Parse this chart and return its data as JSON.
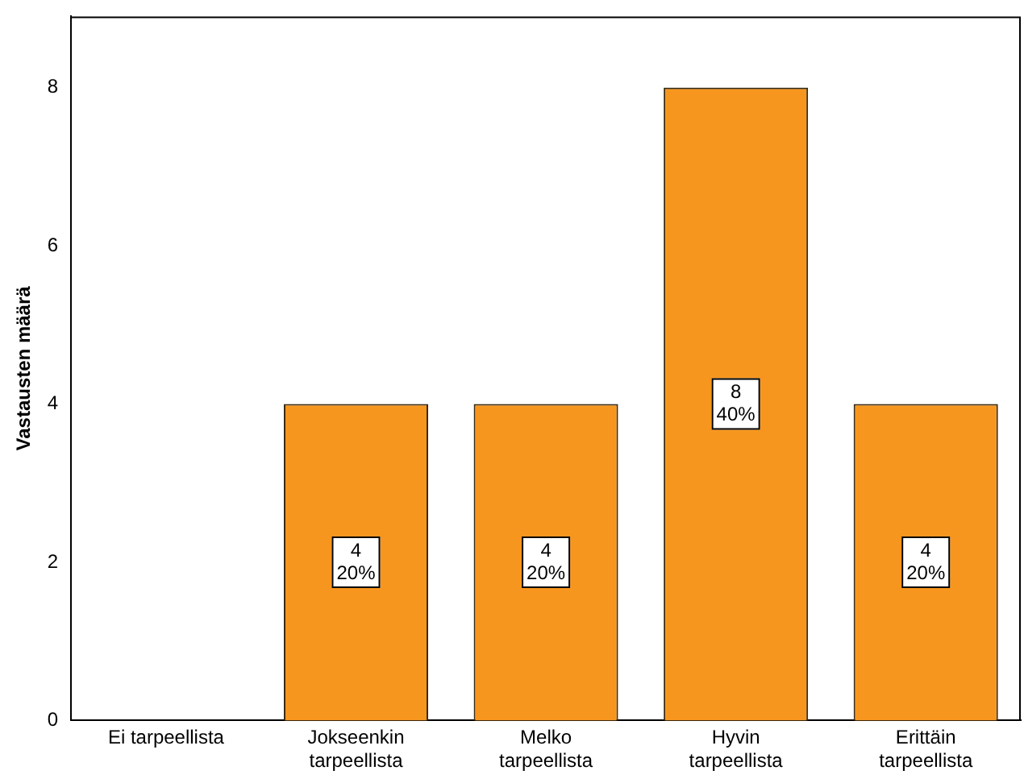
{
  "chart_data": {
    "type": "bar",
    "ylabel": "Vastausten määrä",
    "categories": [
      "Ei tarpeellista",
      "Jokseenkin tarpeellista",
      "Melko tarpeellista",
      "Hyvin tarpeellista",
      "Erittäin tarpeellista"
    ],
    "values": [
      0,
      4,
      4,
      8,
      4
    ],
    "value_labels": [
      null,
      "4\n20%",
      "4\n20%",
      "8\n40%",
      "4\n20%"
    ],
    "color": "#f7961e",
    "ylim": [
      0,
      8.9
    ],
    "yticks": [
      0,
      2,
      4,
      6,
      8
    ],
    "grid": false,
    "legend": false
  }
}
